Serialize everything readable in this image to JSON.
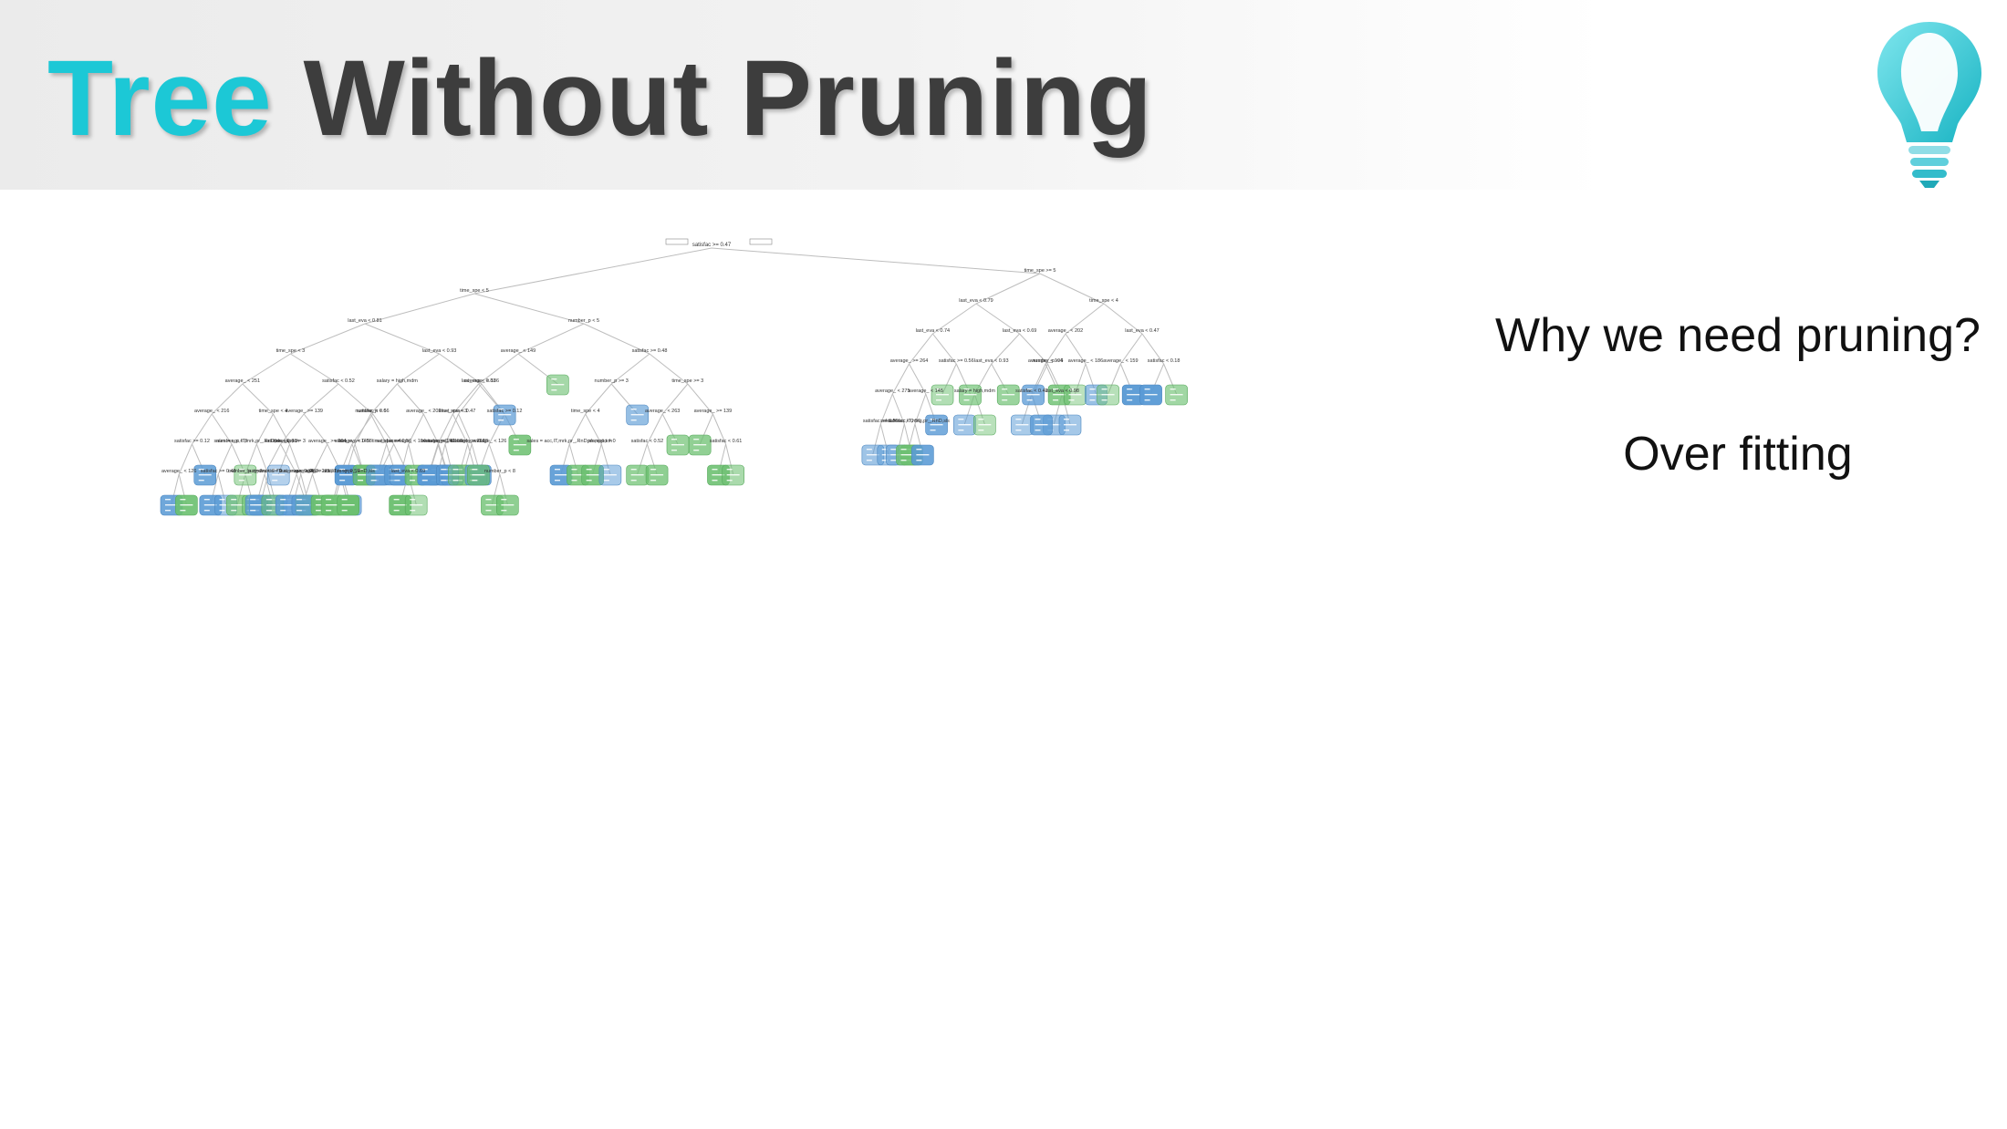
{
  "slide": {
    "title_accent": "Tree",
    "title_main": "Without Pruning",
    "question": "Why we need pruning?",
    "answer": "Over fitting"
  },
  "colors": {
    "accent": "#1cc8d6",
    "title": "#3d3d3d",
    "node_blue": "#5b9bd5",
    "node_green": "#6cc070",
    "edge": "#bdbdbd"
  },
  "icons": [
    "lightbulb-logo-icon"
  ],
  "diagram": {
    "type": "decision-tree",
    "root_split": "satisfac >= 0.47",
    "level1_splits": [
      "time_spe < 5",
      "time_spe >= 5"
    ],
    "split_labels": [
      "last_eva < 0.81",
      "time_spe < 3",
      "average_ < 251",
      "average_ < 216",
      "satisfac >= 0.12",
      "average_ < 126",
      "number_p < 8",
      "satisfac >= 0.48",
      "number_p >= 3",
      "time_spe < 4",
      "sales = acc,IT,mrk,pr_,RnD,sls,spp,tch",
      "promotio = 0",
      "time_spe >= 3",
      "average_ < 263",
      "satisfac < 0.52",
      "average_ >= 139",
      "satisfac < 0.61",
      "last_eva < 0.79",
      "last_eva < 0.74",
      "average_ >= 264",
      "average_ < 275",
      "satisfac >= 0.59",
      "satisfac < 0.56",
      "average_ < 145",
      "sales = acc,IT,mng,pr_,RnD,sls",
      "satisfac >= 0.56",
      "last_eva < 0.69",
      "last_eva < 0.93",
      "salary = high,mdm",
      "number_p < 6",
      "last_eva < 0.98",
      "time_spe < 4",
      "average_ < 202",
      "average_ < 194",
      "satisfac < 0.42",
      "average_ < 186",
      "last_eva < 0.47",
      "average_ < 159",
      "satisfac < 0.18",
      "number_p < 5",
      "average_ < 149"
    ]
  }
}
